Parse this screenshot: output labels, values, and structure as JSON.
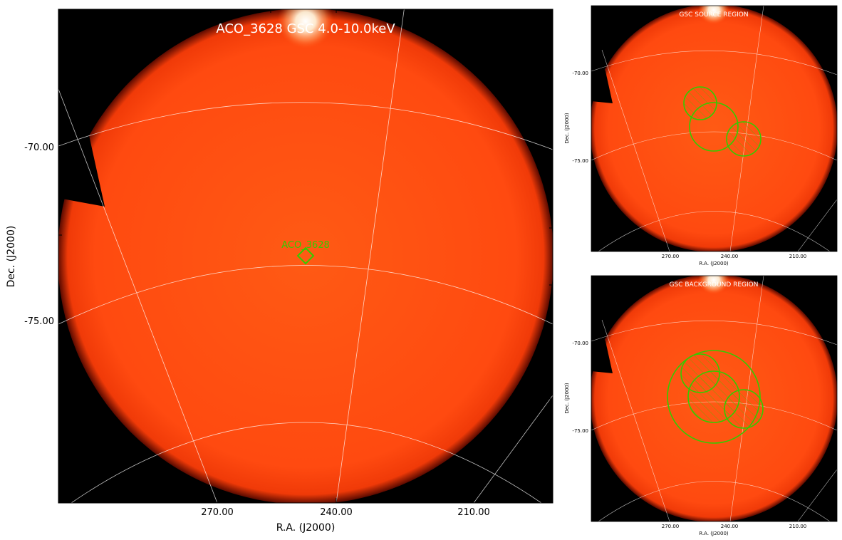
{
  "main_panel": {
    "title": "ACO_3628 GSC 4.0-10.0keV",
    "target_label": "ACO_3628",
    "xlabel": "R.A. (J2000)",
    "ylabel": "Dec. (J2000)",
    "xticks": [
      "270.00",
      "240.00",
      "210.00"
    ],
    "yticks": [
      "-70.00",
      "-75.00"
    ]
  },
  "source_panel": {
    "title": "GSC SOURCE REGION",
    "xlabel": "R.A. (J2000)",
    "ylabel": "Dec. (J2000)",
    "xticks": [
      "270.00",
      "240.00",
      "210.00"
    ],
    "yticks": [
      "-70.00",
      "-75.00"
    ]
  },
  "background_panel": {
    "title": "GSC BACKGROUND REGION",
    "xlabel": "R.A. (J2000)",
    "ylabel": "Dec. (J2000)",
    "xticks": [
      "270.00",
      "240.00",
      "210.00"
    ],
    "yticks": [
      "-70.00",
      "-75.00"
    ]
  },
  "colors": {
    "image_fill": "#ff4a10",
    "grid": "#ffffff",
    "region": "#33cc00",
    "background": "#000000"
  }
}
